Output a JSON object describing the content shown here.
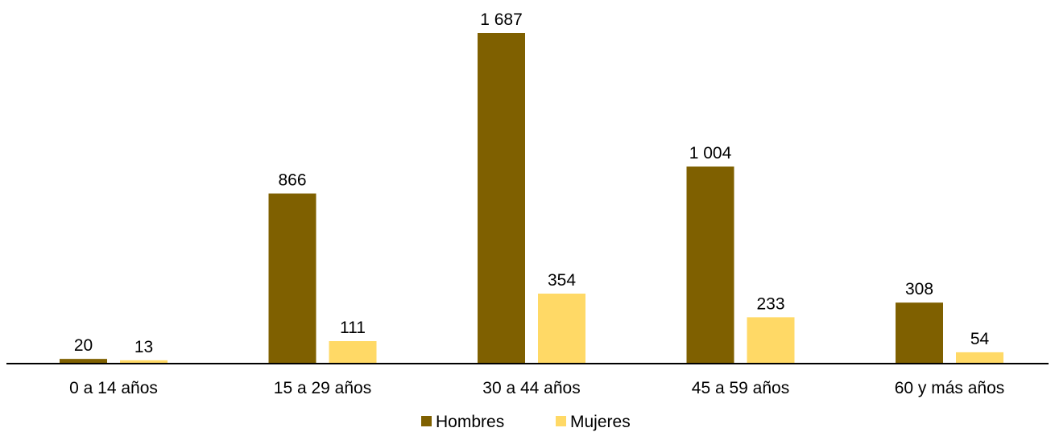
{
  "chart_data": {
    "type": "bar",
    "categories": [
      "0 a 14 años",
      "15 a 29 años",
      "30 a 44 años",
      "45 a 59 años",
      "60 y más años"
    ],
    "series": [
      {
        "name": "Hombres",
        "color": "#7f6000",
        "values": [
          20,
          866,
          1687,
          1004,
          308
        ],
        "labels": [
          "20",
          "866",
          "1 687",
          "1 004",
          "308"
        ]
      },
      {
        "name": "Mujeres",
        "color": "#ffd966",
        "values": [
          13,
          111,
          354,
          233,
          54
        ],
        "labels": [
          "13",
          "111",
          "354",
          "233",
          "54"
        ]
      }
    ],
    "ylim": [
      0,
      1687
    ],
    "grid": false,
    "legend_position": "bottom-center"
  }
}
